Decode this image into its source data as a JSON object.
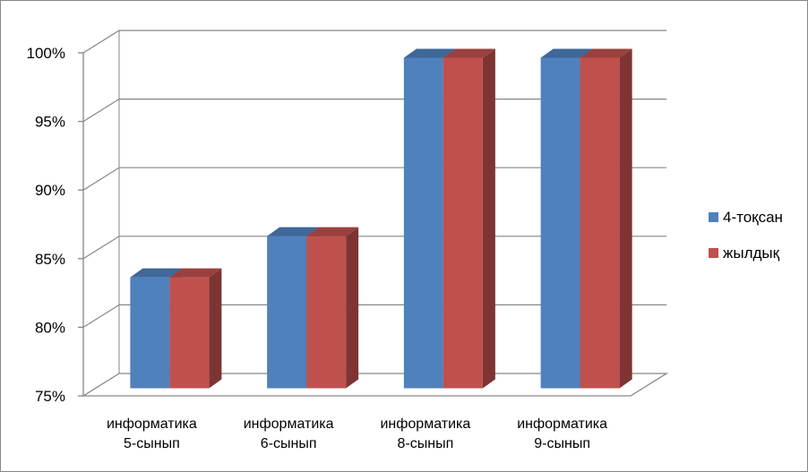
{
  "chart_data": {
    "type": "bar",
    "style": "3d-clustered-column",
    "categories": [
      [
        "информатика",
        "5-сынып"
      ],
      [
        "информатика",
        "6-сынып"
      ],
      [
        "информатика",
        "8-сынып"
      ],
      [
        "информатика",
        "9-сынып"
      ]
    ],
    "series": [
      {
        "name": "4-тоқсан",
        "values": [
          84,
          87,
          100,
          100
        ],
        "color": "#4f81bd"
      },
      {
        "name": "жылдық",
        "values": [
          84,
          87,
          100,
          100
        ],
        "color": "#c0504d"
      }
    ],
    "y_ticks": [
      "75%",
      "80%",
      "85%",
      "90%",
      "95%",
      "100%"
    ],
    "ylim": [
      75,
      100
    ],
    "grid": true,
    "legend_position": "right",
    "title": "",
    "xlabel": "",
    "ylabel": ""
  }
}
